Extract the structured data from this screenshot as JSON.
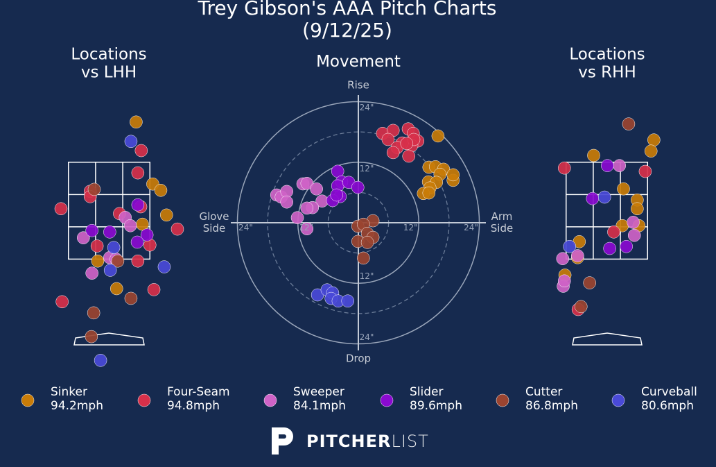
{
  "title": "Trey Gibson's AAA Pitch Charts (9/12/25)",
  "chart_data": [
    {
      "type": "scatter",
      "title": "Locations\nvs LHH",
      "xlim": [
        -1.42,
        1.42
      ],
      "ylim": [
        -0.6,
        4.7
      ],
      "zone": {
        "x": [
          -0.71,
          0.71
        ],
        "y": [
          1.5,
          3.5
        ]
      },
      "series": [
        {
          "x": [
            0.47,
            0.76,
            0.9,
            1.0,
            0.58,
            -0.2,
            0.13
          ],
          "values": [
            4.33,
            3.05,
            2.92,
            2.41,
            2.22,
            1.46,
            0.89
          ]
        },
        {
          "x": [
            0.56,
            0.5,
            -0.33,
            -0.33,
            -0.84,
            0.18,
            0.55,
            1.19,
            0.71,
            -0.21,
            0.5,
            0.78,
            -0.82
          ],
          "values": [
            3.74,
            3.28,
            2.9,
            2.79,
            2.54,
            2.44,
            2.58,
            2.12,
            1.79,
            1.77,
            1.46,
            0.87,
            0.62
          ]
        },
        {
          "x": [
            0.28,
            0.37,
            -0.45,
            0.01,
            -0.3,
            0.12
          ],
          "values": [
            2.36,
            2.19,
            1.94,
            1.53,
            1.21,
            1.5
          ]
        },
        {
          "x": [
            0.5,
            -0.3,
            0.01,
            0.66,
            0.49
          ],
          "values": [
            2.62,
            2.09,
            2.06,
            2.0,
            1.85
          ]
        },
        {
          "x": [
            -0.26,
            0.15,
            0.38,
            -0.27,
            -0.31
          ],
          "values": [
            2.94,
            1.46,
            0.69,
            0.39,
            -0.1
          ]
        },
        {
          "x": [
            0.38,
            0.08,
            0.96,
            0.02,
            -0.15
          ],
          "values": [
            3.93,
            1.74,
            1.34,
            1.27,
            -0.59
          ]
        }
      ]
    },
    {
      "type": "polar",
      "title": "Movement",
      "xlim": [
        -25.3,
        25.3
      ],
      "ylim": [
        -25.3,
        25.3
      ],
      "rticks": [
        {
          "value": 12,
          "label": "12\""
        },
        {
          "value": 24,
          "label": "24\""
        }
      ],
      "rminor": [
        6,
        18
      ],
      "axis_labels": {
        "top": "Rise",
        "bottom": "Drop",
        "left": "Glove\nSide",
        "right": "Arm\nSide"
      },
      "series": [
        {
          "x": [
            15.8,
            14.0,
            15.3,
            16.9,
            18.8,
            18.8,
            16.2,
            13.9,
            15.5,
            14.2,
            12.9,
            14.0
          ],
          "values": [
            17.2,
            11.0,
            11.1,
            10.6,
            8.4,
            9.5,
            9.6,
            8.1,
            8.0,
            6.9,
            5.8,
            5.9
          ]
        },
        {
          "x": [
            4.8,
            6.9,
            9.9,
            10.9,
            11.8,
            10.6,
            8.7,
            5.9,
            7.7,
            6.9,
            10.0,
            11.0,
            9.6
          ],
          "values": [
            17.7,
            18.3,
            18.6,
            17.7,
            16.2,
            15.3,
            15.8,
            16.5,
            14.9,
            13.9,
            13.2,
            16.5,
            15.7
          ]
        },
        {
          "x": [
            -16.2,
            -15.3,
            -14.2,
            -14.2,
            -11.0,
            -10.2,
            -8.3,
            -7.2,
            -9.1,
            -10.2,
            -12.1,
            -10.2
          ],
          "values": [
            5.5,
            5.1,
            6.2,
            4.1,
            7.7,
            7.8,
            6.7,
            4.3,
            3.0,
            2.9,
            1.0,
            -1.2
          ]
        },
        {
          "x": [
            -4.1,
            -3.3,
            -4.1,
            -1.9,
            -0.1,
            -3.6,
            -5.1,
            -4.3
          ],
          "values": [
            10.2,
            8.1,
            7.3,
            8.0,
            7.0,
            5.2,
            4.4,
            5.5
          ]
        },
        {
          "x": [
            2.9,
            -0.1,
            1.0,
            1.8,
            2.9,
            -0.1,
            1.8,
            1.0
          ],
          "values": [
            0.4,
            -0.7,
            -0.3,
            -2.1,
            -2.9,
            -3.7,
            -3.9,
            -7.0
          ]
        },
        {
          "x": [
            -8.1,
            -6.2,
            -5.1,
            -5.4,
            -4.0,
            -2.1
          ],
          "values": [
            -14.3,
            -13.3,
            -13.9,
            -15.0,
            -15.5,
            -15.5
          ]
        }
      ]
    },
    {
      "type": "scatter",
      "title": "Locations\nvs RHH",
      "xlim": [
        -1.42,
        1.42
      ],
      "ylim": [
        -0.6,
        4.7
      ],
      "zone": {
        "x": [
          -0.71,
          0.71
        ],
        "y": [
          1.5,
          3.5
        ]
      },
      "series": [
        {
          "x": [
            -0.23,
            0.82,
            0.77,
            0.29,
            0.53,
            0.53,
            0.56,
            0.27,
            -0.48,
            -0.51,
            -0.73
          ],
          "values": [
            3.64,
            3.96,
            3.73,
            2.95,
            2.72,
            2.54,
            2.19,
            2.19,
            1.86,
            1.53,
            1.17
          ]
        },
        {
          "x": [
            -0.74,
            0.67,
            0.12,
            -0.5
          ],
          "values": [
            3.38,
            3.31,
            2.06,
            0.46
          ]
        },
        {
          "x": [
            0.22,
            0.46,
            0.48,
            -0.51,
            -0.77,
            -0.76,
            -0.74
          ],
          "values": [
            3.43,
            2.26,
            1.99,
            1.57,
            1.51,
            0.94,
            1.05
          ]
        },
        {
          "x": [
            0.01,
            -0.25,
            0.05,
            0.34
          ],
          "values": [
            3.43,
            2.75,
            1.72,
            1.76
          ]
        },
        {
          "x": [
            0.38,
            -0.3,
            -0.45
          ],
          "values": [
            4.29,
            1.01,
            0.52
          ]
        },
        {
          "x": [
            -0.04,
            -0.65
          ],
          "values": [
            2.78,
            1.76
          ]
        }
      ]
    }
  ],
  "legend": [
    {
      "name": "Sinker",
      "velocity": "94.2mph",
      "color": "#c97c08"
    },
    {
      "name": "Four-Seam",
      "velocity": "94.8mph",
      "color": "#d7304a"
    },
    {
      "name": "Sweeper",
      "velocity": "84.1mph",
      "color": "#cf63c7"
    },
    {
      "name": "Slider",
      "velocity": "89.6mph",
      "color": "#8a0ad0"
    },
    {
      "name": "Cutter",
      "velocity": "86.8mph",
      "color": "#9b4430"
    },
    {
      "name": "Curveball",
      "velocity": "80.6mph",
      "color": "#4a4ad8"
    }
  ],
  "logo": {
    "bold": "PITCHER",
    "light": "LIST"
  }
}
